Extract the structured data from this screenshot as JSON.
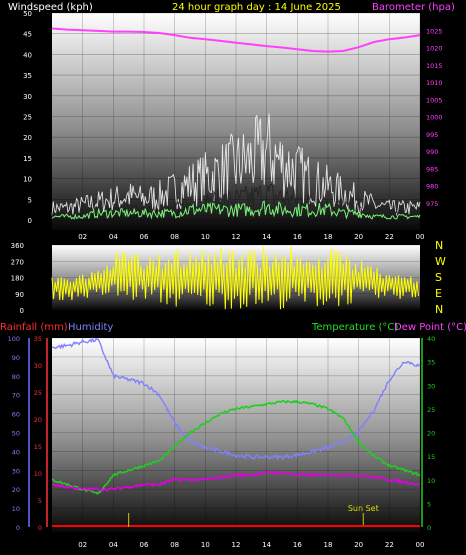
{
  "colors": {
    "wind": "#ffffff",
    "gust": "#ffffff",
    "wind_avg": "#7dff7d",
    "barometer": "#ff40ff",
    "direction": "#ffff00",
    "humidity": "#8080ff",
    "temperature": "#22cc22",
    "dewpoint": "#e000e0",
    "rain": "#ff0000",
    "sun": "#cccc00",
    "title": "#ffff00",
    "label_rain": "#ff3030",
    "label_hum": "#8080ff",
    "label_temp": "#22dd22",
    "label_dew": "#ff40ff"
  },
  "header": {
    "windspeed": "Windspeed (kph)",
    "title": "24 hour graph day : 14 June 2025",
    "barometer": "Barometer (hpa)"
  },
  "panel3_labels": {
    "rainfall": "Rainfall (mm)",
    "humidity": "Humidity",
    "temperature": "Temperature (°C)",
    "dewpoint": "Dew Point (°C)"
  },
  "compass": [
    "N",
    "W",
    "S",
    "E",
    "N"
  ],
  "sunset_label": "Sun Set",
  "chart_data": [
    {
      "type": "line",
      "title": "24 hour graph day : 14 June 2025",
      "x_ticks": [
        "02",
        "04",
        "06",
        "08",
        "10",
        "12",
        "14",
        "16",
        "18",
        "20",
        "22",
        "00"
      ],
      "xlim_hours": [
        0,
        24
      ],
      "left_axis": {
        "label": "Windspeed (kph)",
        "ylim": [
          0,
          50
        ],
        "ticks": [
          "0",
          "5",
          "10",
          "15",
          "20",
          "25",
          "30",
          "35",
          "40",
          "45",
          "50"
        ]
      },
      "right_axis": {
        "label": "Barometer (hpa)",
        "ylim": [
          970,
          1030
        ],
        "ticks": [
          "975",
          "980",
          "985",
          "990",
          "995",
          "1000",
          "1005",
          "1010",
          "1015",
          "1020",
          "1025"
        ]
      },
      "series": [
        {
          "name": "Barometer (hpa)",
          "axis": "right",
          "x": [
            0,
            1,
            2,
            3,
            4,
            5,
            6,
            7,
            8,
            9,
            10,
            11,
            12,
            13,
            14,
            15,
            16,
            17,
            18,
            19,
            20,
            21,
            22,
            23,
            24
          ],
          "y": [
            1025.5,
            1025.2,
            1025.0,
            1024.8,
            1024.6,
            1024.6,
            1024.5,
            1024.2,
            1023.6,
            1022.8,
            1022.4,
            1021.9,
            1021.4,
            1020.9,
            1020.4,
            1020.0,
            1019.5,
            1019.0,
            1018.8,
            1019.0,
            1020.1,
            1021.6,
            1022.4,
            1022.9,
            1023.6
          ]
        },
        {
          "name": "Windspeed (kph)",
          "axis": "left",
          "x": [
            0,
            1,
            2,
            3,
            4,
            5,
            6,
            7,
            8,
            9,
            10,
            11,
            12,
            13,
            14,
            15,
            16,
            17,
            18,
            19,
            20,
            21,
            22,
            23,
            24
          ],
          "y": [
            2,
            2,
            2,
            3,
            3,
            4,
            3,
            3,
            4,
            5,
            6,
            7,
            7,
            8,
            9,
            8,
            7,
            6,
            5,
            5,
            4,
            3,
            2,
            2,
            2
          ]
        },
        {
          "name": "Gust (kph)",
          "axis": "left",
          "x": [
            0,
            1,
            2,
            3,
            4,
            5,
            6,
            7,
            8,
            9,
            10,
            11,
            12,
            13,
            14,
            15,
            16,
            17,
            18,
            19,
            20,
            21,
            22,
            23,
            24
          ],
          "y": [
            4,
            4,
            5,
            6,
            7,
            8,
            7,
            8,
            10,
            12,
            14,
            16,
            18,
            20,
            23,
            19,
            16,
            13,
            11,
            9,
            7,
            5,
            4,
            4,
            4
          ]
        },
        {
          "name": "Average (kph)",
          "axis": "left",
          "x": [
            0,
            1,
            2,
            3,
            4,
            5,
            6,
            7,
            8,
            9,
            10,
            11,
            12,
            13,
            14,
            15,
            16,
            17,
            18,
            19,
            20,
            21,
            22,
            23,
            24
          ],
          "y": [
            1,
            1,
            1,
            2,
            2,
            2,
            2,
            2,
            2,
            3,
            3,
            3,
            3,
            3,
            4,
            3,
            3,
            3,
            3,
            2,
            2,
            1,
            1,
            1,
            1
          ]
        }
      ]
    },
    {
      "type": "scatter",
      "ylim": [
        0,
        360
      ],
      "y_ticks": [
        "0",
        "90",
        "180",
        "270",
        "360"
      ],
      "series": [
        {
          "name": "Wind direction",
          "x": [
            0,
            1,
            2,
            3,
            4,
            5,
            6,
            7,
            8,
            9,
            10,
            11,
            12,
            13,
            14,
            15,
            16,
            17,
            18,
            19,
            20,
            21,
            22,
            23,
            24
          ],
          "y_low": [
            60,
            50,
            60,
            70,
            60,
            40,
            60,
            30,
            10,
            5,
            5,
            5,
            5,
            5,
            5,
            5,
            5,
            10,
            10,
            20,
            40,
            50,
            60,
            60,
            60
          ],
          "y_high": [
            180,
            200,
            200,
            220,
            330,
            340,
            300,
            310,
            350,
            355,
            355,
            355,
            355,
            355,
            355,
            355,
            355,
            350,
            350,
            330,
            300,
            240,
            220,
            200,
            180
          ]
        }
      ]
    },
    {
      "type": "line",
      "x_ticks": [
        "02",
        "04",
        "06",
        "08",
        "10",
        "12",
        "14",
        "16",
        "18",
        "20",
        "22",
        "00"
      ],
      "xlim_hours": [
        0,
        24
      ],
      "left_axes": [
        {
          "label": "Humidity",
          "ylim": [
            0,
            100
          ],
          "ticks": [
            "0",
            "10",
            "20",
            "30",
            "40",
            "50",
            "60",
            "70",
            "80",
            "90",
            "100"
          ]
        },
        {
          "label": "Rainfall (mm)",
          "ylim": [
            0,
            35
          ],
          "ticks": [
            "0",
            "5",
            "10",
            "15",
            "20",
            "25",
            "30",
            "35"
          ]
        }
      ],
      "right_axis": {
        "label": "Temperature (°C)",
        "ylim": [
          0,
          40
        ],
        "ticks": [
          "0",
          "5",
          "10",
          "15",
          "20",
          "25",
          "30",
          "35",
          "40"
        ]
      },
      "series": [
        {
          "name": "Humidity",
          "axis": "humidity",
          "x": [
            0,
            1,
            2,
            3,
            4,
            5,
            6,
            7,
            8,
            9,
            10,
            11,
            12,
            13,
            14,
            15,
            16,
            17,
            18,
            19,
            20,
            21,
            22,
            23,
            24
          ],
          "y": [
            95,
            96,
            98,
            99,
            80,
            78,
            76,
            70,
            55,
            45,
            42,
            40,
            38,
            37,
            37,
            37,
            38,
            40,
            42,
            45,
            50,
            62,
            78,
            88,
            85
          ]
        },
        {
          "name": "Temperature (°C)",
          "axis": "right",
          "x": [
            0,
            1,
            2,
            3,
            4,
            5,
            6,
            7,
            8,
            9,
            10,
            11,
            12,
            13,
            14,
            15,
            16,
            17,
            18,
            19,
            20,
            21,
            22,
            23,
            24
          ],
          "y": [
            10,
            9,
            8,
            7,
            11,
            12,
            13,
            14,
            17,
            20,
            22,
            24,
            25,
            25.5,
            26,
            26.5,
            26.5,
            26,
            25,
            23,
            18,
            15,
            13,
            12,
            11
          ]
        },
        {
          "name": "Dew Point (°C)",
          "axis": "right",
          "x": [
            0,
            1,
            2,
            3,
            4,
            5,
            6,
            7,
            8,
            9,
            10,
            11,
            12,
            13,
            14,
            15,
            16,
            17,
            18,
            19,
            20,
            21,
            22,
            23,
            24
          ],
          "y": [
            9,
            8.5,
            8,
            8,
            8,
            8.5,
            9,
            9,
            10,
            10,
            10,
            10.5,
            11,
            11,
            11.5,
            11.5,
            11,
            11,
            11,
            11,
            11,
            10.5,
            10,
            9.5,
            9
          ]
        },
        {
          "name": "Rainfall (mm)",
          "axis": "rain",
          "x": [
            0,
            24
          ],
          "y": [
            0,
            0
          ]
        }
      ],
      "annotations": [
        {
          "text": "Sun Set",
          "x_hour": 20.3
        }
      ]
    }
  ]
}
